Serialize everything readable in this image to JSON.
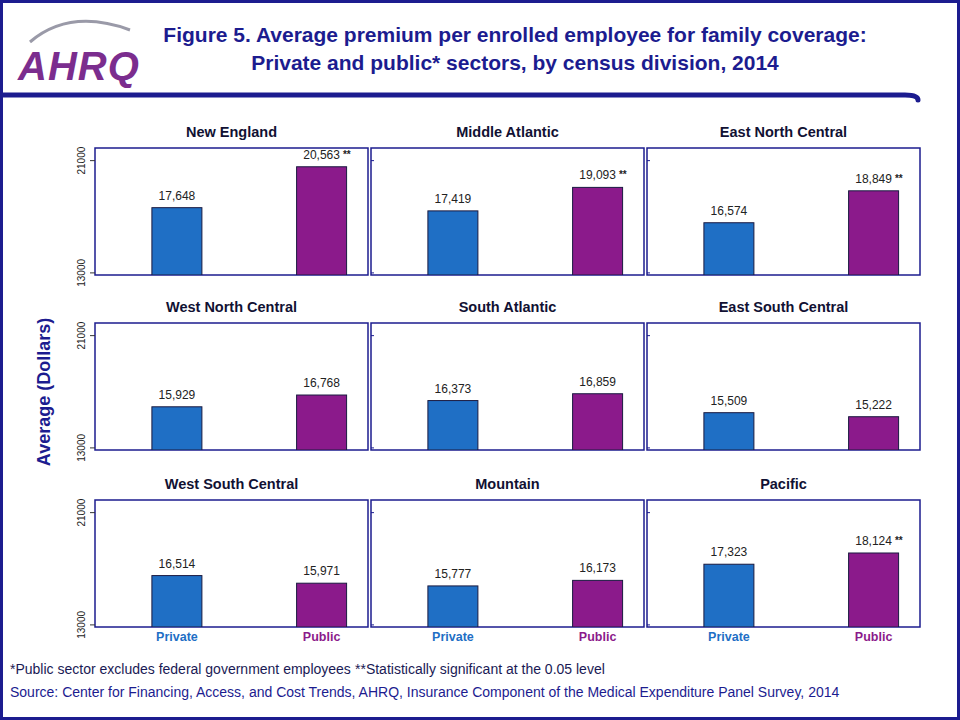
{
  "figure": {
    "logo": "AHRQ",
    "title": [
      "Figure 5. Average premium per enrolled employee for family coverage:",
      "Private and public* sectors, by census division, 2014"
    ],
    "y_label": "Average (Dollars)",
    "footnotes": [
      "*Public sector excludes federal government employees",
      "**Statistically significant at the 0.05 level"
    ],
    "source": "Source: Center for Financing, Access, and Cost Trends, AHRQ, Insurance Component of the Medical Expenditure Panel Survey, 2014"
  },
  "chart_data": [
    {
      "type": "bar",
      "title": "New England",
      "categories": [
        "Private",
        "Public"
      ],
      "values": [
        17648,
        20563
      ],
      "value_labels": [
        "17,648",
        "20,563"
      ],
      "annotations": [
        null,
        "**"
      ],
      "colors": [
        "#1f6fc5",
        "#8b1a8b"
      ],
      "ylim": [
        12850,
        21900
      ],
      "yticks": [
        13000,
        21000
      ],
      "data_labels": true,
      "tick_labels": "y"
    },
    {
      "type": "bar",
      "title": "Middle Atlantic",
      "categories": [
        "Private",
        "Public"
      ],
      "values": [
        17419,
        19093
      ],
      "value_labels": [
        "17,419",
        "19,093"
      ],
      "annotations": [
        null,
        "**"
      ],
      "colors": [
        "#1f6fc5",
        "#8b1a8b"
      ],
      "ylim": [
        12850,
        21900
      ],
      "yticks": [
        13000,
        21000
      ],
      "data_labels": true,
      "tick_labels": false
    },
    {
      "type": "bar",
      "title": "East North Central",
      "categories": [
        "Private",
        "Public"
      ],
      "values": [
        16574,
        18849
      ],
      "value_labels": [
        "16,574",
        "18,849"
      ],
      "annotations": [
        null,
        "**"
      ],
      "colors": [
        "#1f6fc5",
        "#8b1a8b"
      ],
      "ylim": [
        12850,
        21900
      ],
      "yticks": [
        13000,
        21000
      ],
      "data_labels": true,
      "tick_labels": false
    },
    {
      "type": "bar",
      "title": "West North Central",
      "categories": [
        "Private",
        "Public"
      ],
      "values": [
        15929,
        16768
      ],
      "value_labels": [
        "15,929",
        "16,768"
      ],
      "annotations": [
        null,
        null
      ],
      "colors": [
        "#1f6fc5",
        "#8b1a8b"
      ],
      "ylim": [
        12850,
        21900
      ],
      "yticks": [
        13000,
        21000
      ],
      "data_labels": true,
      "tick_labels": "y"
    },
    {
      "type": "bar",
      "title": "South Atlantic",
      "categories": [
        "Private",
        "Public"
      ],
      "values": [
        16373,
        16859
      ],
      "value_labels": [
        "16,373",
        "16,859"
      ],
      "annotations": [
        null,
        null
      ],
      "colors": [
        "#1f6fc5",
        "#8b1a8b"
      ],
      "ylim": [
        12850,
        21900
      ],
      "yticks": [
        13000,
        21000
      ],
      "data_labels": true,
      "tick_labels": false
    },
    {
      "type": "bar",
      "title": "East South Central",
      "categories": [
        "Private",
        "Public"
      ],
      "values": [
        15509,
        15222
      ],
      "value_labels": [
        "15,509",
        "15,222"
      ],
      "annotations": [
        null,
        null
      ],
      "colors": [
        "#1f6fc5",
        "#8b1a8b"
      ],
      "ylim": [
        12850,
        21900
      ],
      "yticks": [
        13000,
        21000
      ],
      "data_labels": true,
      "tick_labels": false
    },
    {
      "type": "bar",
      "title": "West South Central",
      "categories": [
        "Private",
        "Public"
      ],
      "values": [
        16514,
        15971
      ],
      "value_labels": [
        "16,514",
        "15,971"
      ],
      "annotations": [
        null,
        null
      ],
      "colors": [
        "#1f6fc5",
        "#8b1a8b"
      ],
      "ylim": [
        12850,
        21900
      ],
      "yticks": [
        13000,
        21000
      ],
      "data_labels": true,
      "tick_labels": true
    },
    {
      "type": "bar",
      "title": "Mountain",
      "categories": [
        "Private",
        "Public"
      ],
      "values": [
        15777,
        16173
      ],
      "value_labels": [
        "15,777",
        "16,173"
      ],
      "annotations": [
        null,
        null
      ],
      "colors": [
        "#1f6fc5",
        "#8b1a8b"
      ],
      "ylim": [
        12850,
        21900
      ],
      "yticks": [
        13000,
        21000
      ],
      "data_labels": true,
      "tick_labels": "x"
    },
    {
      "type": "bar",
      "title": "Pacific",
      "categories": [
        "Private",
        "Public"
      ],
      "values": [
        17323,
        18124
      ],
      "value_labels": [
        "17,323",
        "18,124"
      ],
      "annotations": [
        null,
        "**"
      ],
      "colors": [
        "#1f6fc5",
        "#8b1a8b"
      ],
      "ylim": [
        12850,
        21900
      ],
      "yticks": [
        13000,
        21000
      ],
      "data_labels": true,
      "tick_labels": "x"
    }
  ]
}
